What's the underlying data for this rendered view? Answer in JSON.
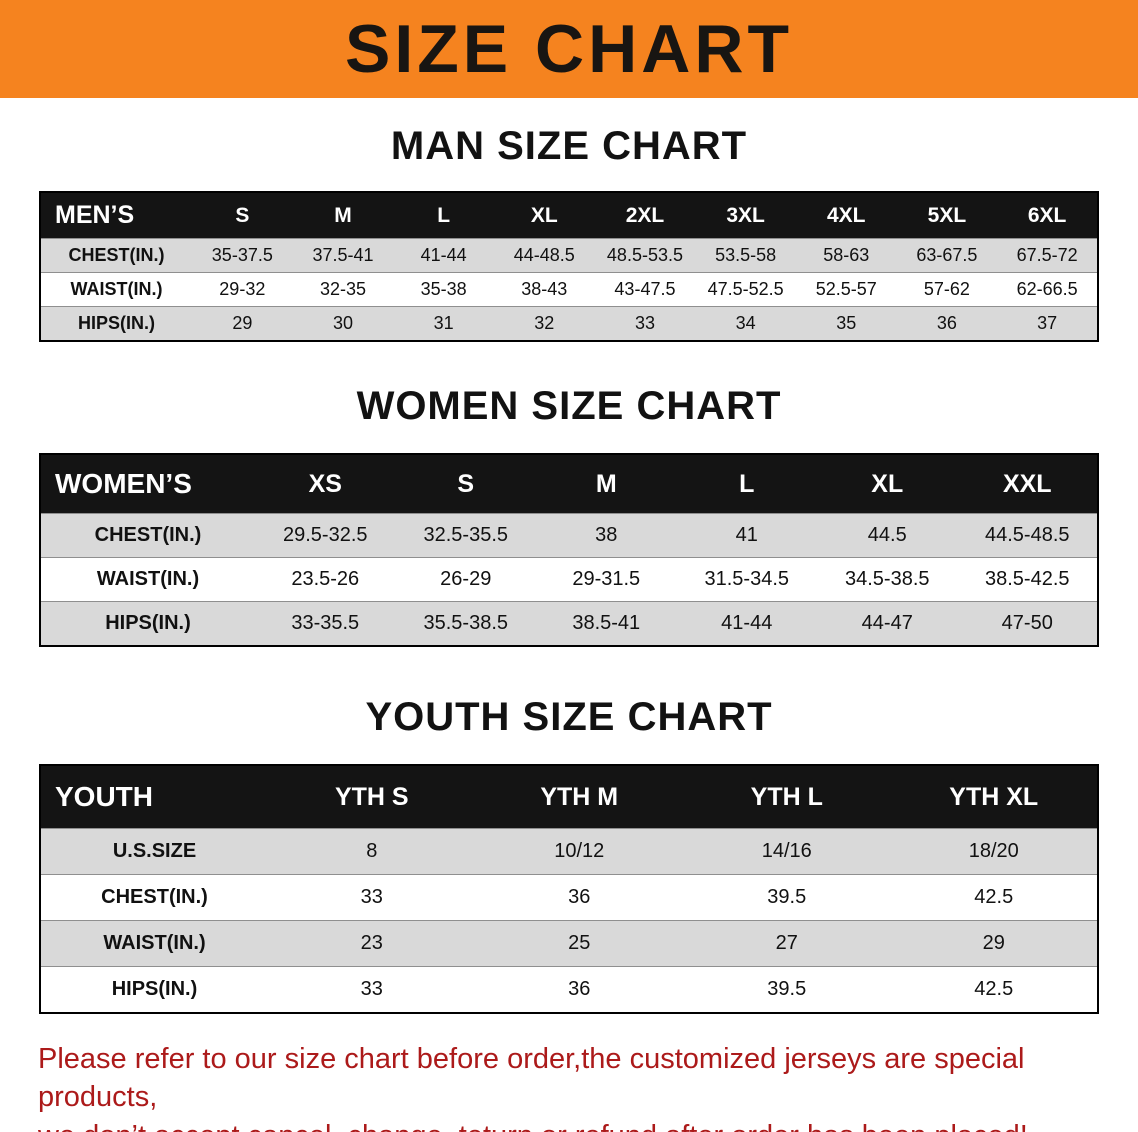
{
  "banner": {
    "title": "SIZE CHART"
  },
  "colors": {
    "banner_orange": "#F5831F",
    "table_header_black": "#141414",
    "row_gray": "#D9D9D9",
    "footer_red": "#AC1A1A"
  },
  "sections": [
    {
      "heading": "MAN SIZE CHART",
      "table": {
        "header": [
          "MEN’S",
          "S",
          "M",
          "L",
          "XL",
          "2XL",
          "3XL",
          "4XL",
          "5XL",
          "6XL"
        ],
        "rows": [
          [
            "CHEST(IN.)",
            "35-37.5",
            "37.5-41",
            "41-44",
            "44-48.5",
            "48.5-53.5",
            "53.5-58",
            "58-63",
            "63-67.5",
            "67.5-72"
          ],
          [
            "WAIST(IN.)",
            "29-32",
            "32-35",
            "35-38",
            "38-43",
            "43-47.5",
            "47.5-52.5",
            "52.5-57",
            "57-62",
            "62-66.5"
          ],
          [
            "HIPS(IN.)",
            "29",
            "30",
            "31",
            "32",
            "33",
            "34",
            "35",
            "36",
            "37"
          ]
        ]
      }
    },
    {
      "heading": "WOMEN SIZE CHART",
      "table": {
        "header": [
          "WOMEN’S",
          "XS",
          "S",
          "M",
          "L",
          "XL",
          "XXL"
        ],
        "rows": [
          [
            "CHEST(IN.)",
            "29.5-32.5",
            "32.5-35.5",
            "38",
            "41",
            "44.5",
            "44.5-48.5"
          ],
          [
            "WAIST(IN.)",
            "23.5-26",
            "26-29",
            "29-31.5",
            "31.5-34.5",
            "34.5-38.5",
            "38.5-42.5"
          ],
          [
            "HIPS(IN.)",
            "33-35.5",
            "35.5-38.5",
            "38.5-41",
            "41-44",
            "44-47",
            "47-50"
          ]
        ]
      }
    },
    {
      "heading": "YOUTH SIZE CHART",
      "table": {
        "header": [
          "YOUTH",
          "YTH S",
          "YTH M",
          "YTH L",
          "YTH XL"
        ],
        "rows": [
          [
            "U.S.SIZE",
            "8",
            "10/12",
            "14/16",
            "18/20"
          ],
          [
            "CHEST(IN.)",
            "33",
            "36",
            "39.5",
            "42.5"
          ],
          [
            "WAIST(IN.)",
            "23",
            "25",
            "27",
            "29"
          ],
          [
            "HIPS(IN.)",
            "33",
            "36",
            "39.5",
            "42.5"
          ]
        ]
      }
    }
  ],
  "footer": {
    "line1": "Please refer to our size chart before order,the customized jerseys are special products,",
    "line2": "we don’t accept cancel, change, teturn or refund after order has been placed!"
  }
}
